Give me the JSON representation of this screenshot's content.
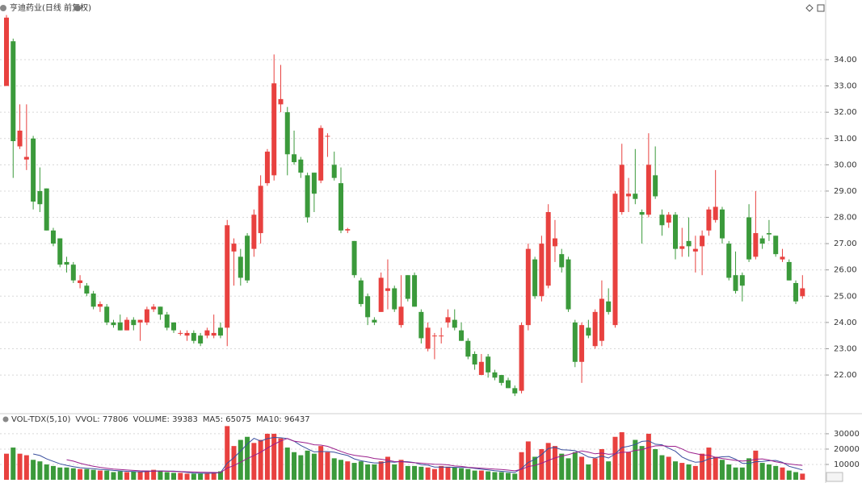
{
  "chart_data": [
    {
      "type": "candlestick",
      "title": "亨迪药业(日线 前复权)",
      "up_color": "#e8413f",
      "down_color": "#3b9a3b",
      "open": [
        33.0,
        34.7,
        30.7,
        30.2,
        31.0,
        29.0,
        29.1,
        27.5,
        27.2,
        26.3,
        26.2,
        25.5,
        25.4,
        25.1,
        24.6,
        24.6,
        24.0,
        24.0,
        23.7,
        24.1,
        24.0,
        24.0,
        24.5,
        24.6,
        24.3,
        24.0,
        23.6,
        23.5,
        23.6,
        23.5,
        23.5,
        23.5,
        23.8,
        23.8,
        26.7,
        26.5,
        27.3,
        26.8,
        27.4,
        29.3,
        29.6,
        32.3,
        32.0,
        30.4,
        30.2,
        29.6,
        29.7,
        29.4,
        31.1,
        30.0,
        29.3,
        27.5,
        27.1,
        25.6,
        25.0,
        24.1,
        24.4,
        25.2,
        25.3,
        23.9,
        25.8,
        25.8,
        24.4,
        23.0,
        23.5,
        23.5,
        24.0,
        24.1,
        23.7,
        23.3,
        22.8,
        22.0,
        22.7,
        22.1,
        22.0,
        21.8,
        21.5,
        21.4,
        23.9,
        26.4,
        25.0,
        25.4,
        26.9,
        26.6,
        26.4,
        24.0,
        22.5,
        23.8,
        23.1,
        23.3,
        24.8,
        23.9,
        28.2,
        28.8,
        28.9,
        28.2,
        28.1,
        29.6,
        28.1,
        27.8,
        28.1,
        26.8,
        27.1,
        26.7,
        26.9,
        27.5,
        27.9,
        28.3,
        27.0,
        25.8,
        25.8,
        28.0,
        26.5,
        27.2,
        27.4,
        27.3,
        26.4,
        26.3,
        25.5,
        25.0
      ],
      "high": [
        35.7,
        34.8,
        32.3,
        32.3,
        31.1,
        29.9,
        29.1,
        27.6,
        27.2,
        26.5,
        26.3,
        25.8,
        25.5,
        25.2,
        24.8,
        24.7,
        24.1,
        24.3,
        24.2,
        24.2,
        24.1,
        24.6,
        24.7,
        24.6,
        24.4,
        24.0,
        23.7,
        23.7,
        23.7,
        23.6,
        23.8,
        24.3,
        24.0,
        27.9,
        27.2,
        26.8,
        27.4,
        28.3,
        29.6,
        30.6,
        34.2,
        33.8,
        32.2,
        31.3,
        30.3,
        29.7,
        29.7,
        31.5,
        31.2,
        30.5,
        29.9,
        27.6,
        27.1,
        25.7,
        25.1,
        24.2,
        25.9,
        26.4,
        25.4,
        25.8,
        25.8,
        25.9,
        24.5,
        24.0,
        23.6,
        23.8,
        24.5,
        24.5,
        24.0,
        23.4,
        22.9,
        22.8,
        22.8,
        22.2,
        22.0,
        21.9,
        21.6,
        24.0,
        27.0,
        26.5,
        27.3,
        28.5,
        27.9,
        26.8,
        26.5,
        24.1,
        24.0,
        24.1,
        24.5,
        25.6,
        25.3,
        29.0,
        30.8,
        29.5,
        30.6,
        28.3,
        31.2,
        30.7,
        28.3,
        28.2,
        28.2,
        27.6,
        28.0,
        27.3,
        27.5,
        28.4,
        29.8,
        28.4,
        27.1,
        26.7,
        25.9,
        28.5,
        29.0,
        27.3,
        27.9,
        27.3,
        26.8,
        26.4,
        25.6,
        25.8
      ],
      "low": [
        33.0,
        29.5,
        30.6,
        29.8,
        28.3,
        28.2,
        27.5,
        26.9,
        26.1,
        25.9,
        25.5,
        25.3,
        25.0,
        24.5,
        24.4,
        23.9,
        23.8,
        23.7,
        23.7,
        23.7,
        23.3,
        23.9,
        24.4,
        24.1,
        23.7,
        23.6,
        23.5,
        23.3,
        23.2,
        23.1,
        23.4,
        23.4,
        23.4,
        23.1,
        25.4,
        25.4,
        25.5,
        26.5,
        27.0,
        29.2,
        29.4,
        32.0,
        29.6,
        30.0,
        29.5,
        27.8,
        28.2,
        29.3,
        30.3,
        29.4,
        27.4,
        27.4,
        25.7,
        24.6,
        23.9,
        23.9,
        24.4,
        24.5,
        24.4,
        23.8,
        24.8,
        24.6,
        23.2,
        22.9,
        22.6,
        23.2,
        23.8,
        23.7,
        23.3,
        22.6,
        22.2,
        22.0,
        21.9,
        21.8,
        21.6,
        21.5,
        21.2,
        21.3,
        23.7,
        24.9,
        24.8,
        25.3,
        26.3,
        25.9,
        24.4,
        22.3,
        21.7,
        23.4,
        23.0,
        23.1,
        24.3,
        23.8,
        28.1,
        28.2,
        28.5,
        27.0,
        28.0,
        28.7,
        27.3,
        27.6,
        26.4,
        26.5,
        26.5,
        25.9,
        25.8,
        27.3,
        27.8,
        27.0,
        25.6,
        25.1,
        24.8,
        26.3,
        26.4,
        26.8,
        27.1,
        26.5,
        26.3,
        25.6,
        24.7,
        24.9
      ],
      "close": [
        35.6,
        30.9,
        31.3,
        30.3,
        28.6,
        28.5,
        27.5,
        27.0,
        26.2,
        26.2,
        25.6,
        25.6,
        25.1,
        24.6,
        24.7,
        24.0,
        23.9,
        23.7,
        24.1,
        23.9,
        24.1,
        24.5,
        24.6,
        24.3,
        23.8,
        23.7,
        23.6,
        23.6,
        23.3,
        23.2,
        23.7,
        23.6,
        23.5,
        27.7,
        27.0,
        25.7,
        25.6,
        28.1,
        29.2,
        30.5,
        33.1,
        32.5,
        30.4,
        30.1,
        29.7,
        28.0,
        28.9,
        31.4,
        31.1,
        29.5,
        27.5,
        27.55,
        25.8,
        24.7,
        24.2,
        24.0,
        25.7,
        25.3,
        24.5,
        24.6,
        24.9,
        24.6,
        23.4,
        23.8,
        23.5,
        23.5,
        24.2,
        23.8,
        23.3,
        22.7,
        22.4,
        22.5,
        22.1,
        21.9,
        21.7,
        21.5,
        21.3,
        23.9,
        26.8,
        25.0,
        27.0,
        28.2,
        27.2,
        26.1,
        24.5,
        22.5,
        23.9,
        23.5,
        24.4,
        24.9,
        24.4,
        28.9,
        30.0,
        28.9,
        28.7,
        28.1,
        30.0,
        28.8,
        27.7,
        28.1,
        26.8,
        26.9,
        26.9,
        26.8,
        27.3,
        28.3,
        28.4,
        27.2,
        25.7,
        25.2,
        25.4,
        26.4,
        27.4,
        27.0,
        27.35,
        26.6,
        26.5,
        25.6,
        24.8,
        25.3
      ],
      "ylim": [
        20.56,
        35.81
      ],
      "yticks": [
        {
          "value": 22,
          "label": "22.00"
        },
        {
          "value": 23,
          "label": "23.00"
        },
        {
          "value": 24,
          "label": "24.00"
        },
        {
          "value": 25,
          "label": "25.00"
        },
        {
          "value": 26,
          "label": "26.00"
        },
        {
          "value": 27,
          "label": "27.00"
        },
        {
          "value": 28,
          "label": "28.00"
        },
        {
          "value": 29,
          "label": "29.00"
        },
        {
          "value": 30,
          "label": "30.00"
        },
        {
          "value": 31,
          "label": "31.00"
        },
        {
          "value": 32,
          "label": "32.00"
        },
        {
          "value": 33,
          "label": "33.00"
        },
        {
          "value": 34,
          "label": "34.00"
        }
      ],
      "grid": true
    },
    {
      "type": "bar",
      "title": "VOL-TDX(5,10)",
      "readouts": [
        {
          "text": "VVOL: 77806",
          "color": "#333333"
        },
        {
          "text": "VOLUME: 39383",
          "color": "#1e78c8"
        },
        {
          "text": "MA5: 65075",
          "color": "#1e78c8"
        },
        {
          "text": "MA10: 96437",
          "color": "#9b1f8c"
        }
      ],
      "values": [
        17000,
        21000,
        17000,
        16000,
        13000,
        12000,
        10000,
        9000,
        8000,
        8000,
        7500,
        7000,
        7000,
        6500,
        6000,
        6000,
        5000,
        5500,
        5000,
        5500,
        5000,
        6000,
        6500,
        6000,
        5000,
        4500,
        4500,
        4000,
        4000,
        4000,
        4500,
        5000,
        5500,
        35000,
        22000,
        26000,
        28000,
        24000,
        26000,
        30000,
        30000,
        27000,
        21000,
        18000,
        16000,
        19000,
        17000,
        22000,
        18000,
        14000,
        13000,
        12000,
        11000,
        12000,
        10000,
        10000,
        12000,
        15000,
        10000,
        13000,
        9000,
        9000,
        8500,
        8000,
        7000,
        9000,
        8500,
        8000,
        7500,
        7000,
        6000,
        6000,
        5500,
        5000,
        5000,
        4500,
        4000,
        18000,
        25000,
        15000,
        20000,
        24000,
        22000,
        17000,
        14000,
        18000,
        15000,
        10000,
        14000,
        20000,
        12000,
        28000,
        31000,
        18000,
        26000,
        22000,
        30000,
        20000,
        16000,
        15000,
        12000,
        11000,
        10000,
        9000,
        17000,
        21000,
        15000,
        13000,
        10000,
        8000,
        8000,
        14000,
        19000,
        11000,
        10000,
        9000,
        8000,
        6000,
        5000,
        4000
      ],
      "lines": [
        {
          "color": "#3a4f9e",
          "values": [
            null,
            null,
            null,
            null,
            16800,
            15800,
            13600,
            12000,
            10400,
            9400,
            8500,
            7900,
            7500,
            7200,
            6800,
            6500,
            6100,
            5800,
            5500,
            5400,
            5200,
            5400,
            5600,
            5800,
            5700,
            5600,
            5300,
            4800,
            4400,
            4200,
            4200,
            4300,
            4600,
            10800,
            14400,
            18700,
            23300,
            27000,
            25200,
            26800,
            27600,
            27400,
            26800,
            25200,
            22400,
            20200,
            18200,
            18400,
            18400,
            18000,
            16800,
            15800,
            13600,
            12400,
            11600,
            11000,
            11000,
            11800,
            11400,
            12000,
            11800,
            11200,
            9900,
            9500,
            8300,
            8300,
            8200,
            8100,
            8000,
            8000,
            7400,
            6900,
            6400,
            5900,
            5500,
            5200,
            4800,
            7300,
            11300,
            13300,
            16400,
            20400,
            21200,
            19600,
            19400,
            19000,
            17200,
            14800,
            14200,
            15400,
            14200,
            16800,
            21000,
            21800,
            23000,
            25000,
            25400,
            23200,
            22800,
            20600,
            18600,
            14800,
            12800,
            11400,
            11800,
            13600,
            14400,
            15000,
            15200,
            13400,
            10800,
            10600,
            11800,
            12000,
            12400,
            12600,
            11400,
            8800,
            7600,
            6400
          ]
        },
        {
          "color": "#9b1f8c",
          "values": [
            null,
            null,
            null,
            null,
            null,
            null,
            null,
            null,
            null,
            13100,
            12150,
            10750,
            9750,
            8800,
            8100,
            7500,
            7000,
            6650,
            6350,
            6100,
            5850,
            5750,
            5700,
            5650,
            5550,
            5400,
            5350,
            5200,
            5100,
            4950,
            4900,
            4800,
            4700,
            7600,
            9300,
            11450,
            13800,
            15800,
            18000,
            20600,
            23150,
            25350,
            26900,
            25200,
            24600,
            23900,
            22800,
            22600,
            21800,
            20200,
            18500,
            17000,
            16000,
            15400,
            14800,
            13900,
            13400,
            12700,
            11900,
            11800,
            11400,
            11100,
            10850,
            10450,
            10150,
            10050,
            9700,
            9000,
            8750,
            8150,
            7850,
            7550,
            7250,
            6950,
            6750,
            6300,
            5850,
            6850,
            8600,
            9400,
            10800,
            12600,
            14250,
            15450,
            16350,
            17700,
            18800,
            18000,
            16900,
            17400,
            16600,
            17000,
            17900,
            18000,
            19200,
            19600,
            21100,
            22100,
            22300,
            21800,
            21800,
            20100,
            18000,
            17100,
            16200,
            16100,
            14600,
            13900,
            13300,
            12600,
            12200,
            12500,
            13400,
            13600,
            12900,
            11700,
            11000,
            10300,
            9800,
            9400
          ]
        }
      ],
      "ylim": [
        0,
        41000
      ],
      "yticks": [
        10000,
        20000,
        30000
      ],
      "grid": true
    }
  ]
}
